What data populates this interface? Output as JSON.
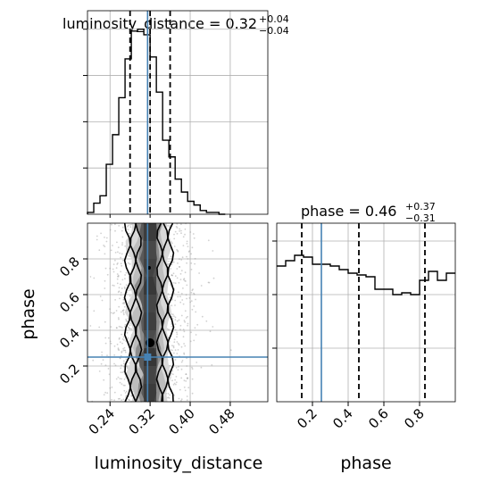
{
  "chart_data": [
    {
      "type": "histogram",
      "panel": "luminosity_distance-marginal",
      "title_main": "luminosity_distance = 0.32",
      "title_sup": "+0.04",
      "title_sub": "−0.04",
      "xlim": [
        0.195,
        0.555
      ],
      "bin_edges": [
        0.195,
        0.2075,
        0.22,
        0.2325,
        0.245,
        0.2575,
        0.27,
        0.2825,
        0.295,
        0.3075,
        0.32,
        0.3325,
        0.345,
        0.3575,
        0.37,
        0.3825,
        0.395,
        0.4075,
        0.42,
        0.4325,
        0.445,
        0.4575,
        0.47
      ],
      "values": [
        0.01,
        0.06,
        0.1,
        0.27,
        0.43,
        0.63,
        0.84,
        0.99,
        1.0,
        0.97,
        0.85,
        0.66,
        0.4,
        0.31,
        0.19,
        0.12,
        0.07,
        0.05,
        0.02,
        0.01,
        0.01,
        0.0
      ],
      "ylim": [
        0,
        1.1
      ],
      "quantile_lines": [
        0.28,
        0.32,
        0.36
      ],
      "injection": 0.315
    },
    {
      "type": "scatter_density",
      "panel": "phase-vs-luminosity_distance",
      "x_variable": "luminosity_distance",
      "y_variable": "phase",
      "xlim": [
        0.195,
        0.555
      ],
      "ylim": [
        0.0,
        1.0
      ],
      "xticks": [
        "0.24",
        "0.32",
        "0.40",
        "0.48"
      ],
      "xtick_values": [
        0.24,
        0.32,
        0.4,
        0.48
      ],
      "yticks": [
        "0.2",
        "0.4",
        "0.6",
        "0.8"
      ],
      "ytick_values": [
        0.2,
        0.4,
        0.6,
        0.8
      ],
      "xlabel": "luminosity_distance",
      "ylabel": "phase",
      "injection": {
        "x": 0.315,
        "y": 0.25
      }
    },
    {
      "type": "histogram",
      "panel": "phase-marginal",
      "title_main": "phase = 0.46",
      "title_sup": "+0.37",
      "title_sub": "−0.31",
      "xlim": [
        0.0,
        1.0
      ],
      "bin_edges": [
        0.0,
        0.05,
        0.1,
        0.15,
        0.2,
        0.25,
        0.3,
        0.35,
        0.4,
        0.45,
        0.5,
        0.55,
        0.6,
        0.65,
        0.7,
        0.75,
        0.8,
        0.85,
        0.9,
        0.95,
        1.0
      ],
      "values": [
        0.76,
        0.79,
        0.82,
        0.81,
        0.77,
        0.77,
        0.76,
        0.74,
        0.72,
        0.71,
        0.7,
        0.63,
        0.63,
        0.6,
        0.61,
        0.6,
        0.68,
        0.73,
        0.68,
        0.72
      ],
      "ylim": [
        0,
        1.0
      ],
      "quantile_lines": [
        0.14,
        0.46,
        0.83
      ],
      "injection": 0.25,
      "xticks": [
        "0.2",
        "0.4",
        "0.6",
        "0.8"
      ],
      "xtick_values": [
        0.2,
        0.4,
        0.6,
        0.8
      ],
      "xlabel": "phase"
    }
  ],
  "colors": {
    "injection": "#4682b4",
    "hist_line": "#000000",
    "grid": "#b0b0b0",
    "points": "#9a9a9a"
  }
}
